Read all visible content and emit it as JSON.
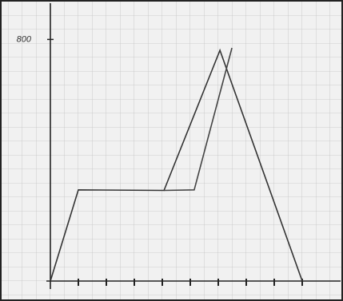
{
  "chart_data": {
    "type": "line",
    "series": [
      {
        "color": "#333333",
        "x": [
          0,
          1,
          4.06,
          6.06,
          9.0
        ],
        "values": [
          0,
          302,
          300,
          764,
          0
        ]
      },
      {
        "color": "#444444",
        "x": [
          4.06,
          5.14,
          6.49
        ],
        "values": [
          300,
          302,
          772
        ]
      }
    ],
    "xlim": [
      0,
      10.3
    ],
    "xticks": [
      1,
      2,
      3,
      4,
      5,
      6,
      7,
      8,
      9
    ],
    "ylim": [
      0,
      920
    ],
    "yticks": [
      800
    ],
    "grid": true
  }
}
